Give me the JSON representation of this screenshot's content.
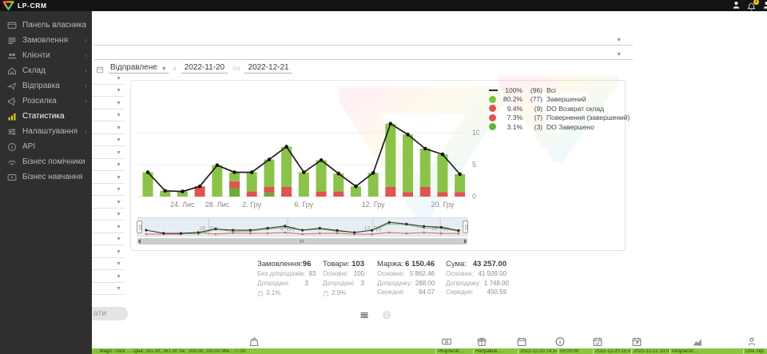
{
  "header": {
    "brand": "LP-CRM",
    "notification_badge": "1"
  },
  "sidebar": {
    "items": [
      {
        "label": "Панель власника",
        "icon": "dashboard-icon",
        "submenu": false,
        "active": false
      },
      {
        "label": "Замовлення",
        "icon": "orders-icon",
        "submenu": true,
        "active": false
      },
      {
        "label": "Клієнти",
        "icon": "clients-icon",
        "submenu": true,
        "active": false
      },
      {
        "label": "Склад",
        "icon": "warehouse-icon",
        "submenu": true,
        "active": false
      },
      {
        "label": "Відправка",
        "icon": "shipping-icon",
        "submenu": true,
        "active": false
      },
      {
        "label": "Розсилка",
        "icon": "megaphone-icon",
        "submenu": true,
        "active": false
      },
      {
        "label": "Статистика",
        "icon": "stats-icon",
        "submenu": false,
        "active": true
      },
      {
        "label": "Налаштування",
        "icon": "settings-icon",
        "submenu": true,
        "active": false
      },
      {
        "label": "API",
        "icon": "api-icon",
        "submenu": false,
        "active": false
      },
      {
        "label": "Бізнес помічники",
        "icon": "helpers-icon",
        "submenu": false,
        "active": false
      },
      {
        "label": "Бізнес навчання",
        "icon": "education-icon",
        "submenu": false,
        "active": false
      }
    ]
  },
  "filters": {
    "date_type": "Відправлене",
    "from_label": "з",
    "date_from": "2022-11-20",
    "to_label": "по",
    "date_to": "2022-12-21",
    "search_button": "ати",
    "mini_select_count": 18
  },
  "chart_data": {
    "type": "bar",
    "subtype": "stacked bars with total line overlay",
    "title": "",
    "ylim": [
      0,
      12
    ],
    "yticks": [
      0,
      5,
      10
    ],
    "grid": true,
    "legend_position": "top-right",
    "colors": {
      "green": "#8bc34a",
      "green2": "#68ad39",
      "red": "#e0544f",
      "line": "#1c1c1c"
    },
    "bars": [
      {
        "segments": [
          [
            "green",
            3.8
          ]
        ]
      },
      {
        "segments": [
          [
            "green",
            0.9
          ]
        ]
      },
      {
        "segments": [
          [
            "green",
            0.8
          ]
        ]
      },
      {
        "segments": [
          [
            "red",
            1.6
          ]
        ]
      },
      {
        "segments": [
          [
            "green",
            4.9
          ]
        ]
      },
      {
        "segments": [
          [
            "green2",
            1.3
          ],
          [
            "red",
            1.1
          ],
          [
            "green",
            1.4
          ]
        ]
      },
      {
        "segments": [
          [
            "red",
            0.8
          ],
          [
            "green",
            3.0
          ]
        ]
      },
      {
        "segments": [
          [
            "green2",
            0.6
          ],
          [
            "red",
            0.9
          ],
          [
            "green",
            4.3
          ]
        ]
      },
      {
        "segments": [
          [
            "red",
            1.5
          ],
          [
            "green",
            6.3
          ]
        ]
      },
      {
        "segments": [
          [
            "green",
            3.8
          ]
        ]
      },
      {
        "segments": [
          [
            "red",
            0.8
          ],
          [
            "green",
            4.9
          ]
        ]
      },
      {
        "segments": [
          [
            "red",
            0.8
          ],
          [
            "green",
            2.8
          ]
        ]
      },
      {
        "segments": [
          [
            "green",
            1.6
          ]
        ]
      },
      {
        "segments": [
          [
            "green",
            3.7
          ]
        ]
      },
      {
        "segments": [
          [
            "red",
            1.5
          ],
          [
            "green",
            9.9
          ]
        ]
      },
      {
        "segments": [
          [
            "red",
            0.7
          ],
          [
            "green",
            9.0
          ]
        ]
      },
      {
        "segments": [
          [
            "red",
            1.5
          ],
          [
            "green",
            6.0
          ]
        ]
      },
      {
        "segments": [
          [
            "red",
            0.7
          ],
          [
            "green",
            5.9
          ]
        ]
      },
      {
        "segments": [
          [
            "red",
            0.7
          ],
          [
            "green",
            2.8
          ]
        ]
      }
    ],
    "x_labels": [
      {
        "i": 2,
        "t": "24. Лис"
      },
      {
        "i": 4,
        "t": "28. Лис"
      },
      {
        "i": 6,
        "t": "2. Гру"
      },
      {
        "i": 9,
        "t": "6. Гру"
      },
      {
        "i": 13,
        "t": "12. Гру"
      },
      {
        "i": 17,
        "t": "20. Гру"
      }
    ],
    "legend": [
      {
        "swatch": "line",
        "color": "#2b2b2b",
        "pct": "100%",
        "count": "(96)",
        "label": "Всі"
      },
      {
        "swatch": "dot",
        "color": "#7cc142",
        "pct": "80.2%",
        "count": "(77)",
        "label": "Завершений"
      },
      {
        "swatch": "dot",
        "color": "#e05450",
        "pct": "9.4%",
        "count": "(9)",
        "label": "DO Возврат склад"
      },
      {
        "swatch": "dot",
        "color": "#e05450",
        "pct": "7.3%",
        "count": "(7)",
        "label": "Повернення (завершений)"
      },
      {
        "swatch": "dot",
        "color": "#5fb33c",
        "pct": "3.1%",
        "count": "(3)",
        "label": "DO Завершено"
      }
    ],
    "navigator_labels": [
      {
        "x": 0.215,
        "t": "28. Лис"
      },
      {
        "x": 0.455,
        "t": "6. Гру"
      },
      {
        "x": 0.715,
        "t": "13. Гру"
      },
      {
        "x": 0.92,
        "t": "19. Гру"
      }
    ]
  },
  "summary": {
    "cols": [
      {
        "title": "Замовлення:",
        "value": "96",
        "rows": [
          [
            "Без допродажів:",
            "93"
          ],
          [
            "Допродані:",
            "3"
          ]
        ],
        "percent": "3.1%"
      },
      {
        "title": "Товари:",
        "value": "103",
        "rows": [
          [
            "Основні:",
            "100"
          ],
          [
            "Допродані:",
            "3"
          ]
        ],
        "percent": "2.9%"
      },
      {
        "title": "Маржа:",
        "value": "6 150.46",
        "rows": [
          [
            "Основна:",
            "5 862.46"
          ],
          [
            "Допродажу:",
            "288.00"
          ],
          [
            "Середня:",
            "64.07"
          ]
        ]
      },
      {
        "title": "Сума:",
        "value": "43 257.00",
        "rows": [
          [
            "Основна:",
            "41 509.00"
          ],
          [
            "Допродажу:",
            "1 748.00"
          ],
          [
            "Середня:",
            "450.59"
          ]
        ]
      }
    ]
  },
  "view_toggles": [
    "list-view-icon",
    "globe-icon"
  ],
  "bottom_icons": [
    "bag-icon",
    "banknote-icon",
    "gift-icon",
    "calendar-icon",
    "clock-icon",
    "calendar-check-icon",
    "calendar-export-icon",
    "area-chart-icon",
    "person-icon"
  ],
  "table_row": {
    "highlight_color": "#8cc63e",
    "cells": [
      "… Magic Track … Ціна: 261.00, 261.00 Зн.: 200.00, 200.00 Мін.: 77.00",
      "Результат…",
      "Направле…",
      "2022-12-20 14:14:06",
      "00:00:00",
      "2022-12-20 15:00:20",
      "2022-12-21 10:07:05",
      "Результат…",
      "Оле Укр…"
    ]
  }
}
